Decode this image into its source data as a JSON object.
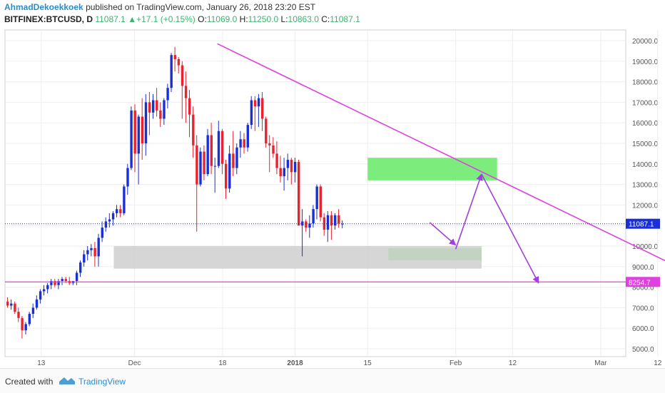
{
  "header": {
    "author": "AhmadDekoekkoek",
    "published": "published on TradingView.com, January 26, 2018 23:20 EST",
    "symbol": "BITFINEX:BTCUSD, D",
    "last": "11087.1",
    "change": "+17.1 (+0.15%)",
    "o_label": "O:",
    "o_val": "11069.0",
    "h_label": "H:",
    "h_val": "11250.0",
    "l_label": "L:",
    "l_val": "10863.0",
    "c_label": "C:",
    "c_val": "11087.1"
  },
  "footer": {
    "created_with": "Created with",
    "brand": "TradingView"
  },
  "colors": {
    "up": "#1a2fd6",
    "down": "#e8232f",
    "trend": "#e040e0",
    "zone": "#6eea6e",
    "gray_zone": "#cfcfcf",
    "arrow": "#a040e0"
  },
  "chart_data": {
    "type": "candlestick",
    "ylim": [
      4500,
      20500
    ],
    "y_ticks": [
      "20000.0",
      "19000.0",
      "18000.0",
      "17000.0",
      "16000.0",
      "15000.0",
      "14000.0",
      "13000.0",
      "12000.0",
      "11000.0",
      "10000.0",
      "9000.0",
      "8000.0",
      "7000.0",
      "6000.0",
      "5000.0"
    ],
    "x_ticks": [
      "13",
      "Dec",
      "18",
      "2018",
      "15",
      "Feb",
      "12",
      "Mar",
      "12"
    ],
    "last_price_label": "11087.1",
    "support_label": "8254.7",
    "support_level": 8254.7,
    "candles": [
      [
        7300,
        7500,
        7000,
        7100
      ],
      [
        7100,
        7400,
        6900,
        7200
      ],
      [
        7200,
        7300,
        6700,
        6800
      ],
      [
        6800,
        7000,
        6300,
        6500
      ],
      [
        6500,
        6600,
        5500,
        5900
      ],
      [
        5900,
        6300,
        5700,
        6200
      ],
      [
        6200,
        6800,
        6100,
        6700
      ],
      [
        6700,
        7200,
        6500,
        7000
      ],
      [
        7000,
        7600,
        6900,
        7400
      ],
      [
        7400,
        7900,
        7200,
        7800
      ],
      [
        7800,
        8100,
        7600,
        7900
      ],
      [
        7900,
        8200,
        7700,
        8100
      ],
      [
        8100,
        8400,
        7900,
        8300
      ],
      [
        8300,
        8400,
        8000,
        8100
      ],
      [
        8100,
        8400,
        7900,
        8300
      ],
      [
        8300,
        8500,
        8100,
        8400
      ],
      [
        8400,
        8500,
        8200,
        8300
      ],
      [
        8300,
        8500,
        8100,
        8200
      ],
      [
        8200,
        8300,
        8100,
        8300
      ],
      [
        8300,
        8800,
        8100,
        8700
      ],
      [
        8700,
        9300,
        8500,
        9200
      ],
      [
        9200,
        9800,
        9000,
        9600
      ],
      [
        9600,
        10000,
        9300,
        9800
      ],
      [
        9800,
        10100,
        9500,
        9900
      ],
      [
        9900,
        10200,
        9000,
        9500
      ],
      [
        9500,
        10600,
        9000,
        10400
      ],
      [
        10400,
        11200,
        10200,
        10900
      ],
      [
        10900,
        11400,
        10700,
        11200
      ],
      [
        11200,
        11600,
        10900,
        11300
      ],
      [
        11300,
        11700,
        11000,
        11600
      ],
      [
        11600,
        12000,
        11400,
        11800
      ],
      [
        11800,
        12000,
        11400,
        11600
      ],
      [
        11600,
        13000,
        11500,
        12900
      ],
      [
        12900,
        14000,
        12500,
        13800
      ],
      [
        13800,
        16800,
        13700,
        16600
      ],
      [
        16600,
        16900,
        13600,
        14500
      ],
      [
        14500,
        16400,
        13000,
        16300
      ],
      [
        16300,
        17200,
        14200,
        15000
      ],
      [
        15000,
        17400,
        14400,
        17000
      ],
      [
        17000,
        17500,
        15400,
        16500
      ],
      [
        16500,
        17400,
        16200,
        17100
      ],
      [
        17100,
        17700,
        16300,
        16600
      ],
      [
        16600,
        17000,
        15800,
        16200
      ],
      [
        16200,
        17200,
        15900,
        17100
      ],
      [
        17100,
        17900,
        16700,
        17700
      ],
      [
        17700,
        19400,
        17500,
        19300
      ],
      [
        19300,
        19700,
        18500,
        19100
      ],
      [
        19100,
        19200,
        18400,
        18800
      ],
      [
        18800,
        19000,
        16200,
        17800
      ],
      [
        17800,
        18500,
        16000,
        17200
      ],
      [
        17200,
        17600,
        15300,
        16400
      ],
      [
        16400,
        16800,
        14300,
        14900
      ],
      [
        14900,
        15400,
        10700,
        13000
      ],
      [
        13000,
        14800,
        12900,
        14600
      ],
      [
        14600,
        14900,
        13200,
        13500
      ],
      [
        13500,
        15700,
        13400,
        15400
      ],
      [
        15400,
        16000,
        13500,
        13900
      ],
      [
        13900,
        14300,
        12600,
        13900
      ],
      [
        13900,
        16100,
        13800,
        15600
      ],
      [
        15600,
        15700,
        13500,
        14000
      ],
      [
        14000,
        14200,
        12300,
        12800
      ],
      [
        12800,
        14900,
        12600,
        14500
      ],
      [
        14500,
        15600,
        13400,
        13800
      ],
      [
        13800,
        15000,
        13500,
        14800
      ],
      [
        14800,
        15600,
        14300,
        15200
      ],
      [
        15200,
        15500,
        14500,
        14800
      ],
      [
        14800,
        16000,
        14600,
        15900
      ],
      [
        15900,
        17300,
        15700,
        17100
      ],
      [
        17100,
        17300,
        15600,
        16800
      ],
      [
        16800,
        17400,
        15800,
        17200
      ],
      [
        17200,
        17500,
        15600,
        16200
      ],
      [
        16200,
        16300,
        14800,
        15000
      ],
      [
        15000,
        15400,
        13600,
        14900
      ],
      [
        14900,
        15300,
        14300,
        14500
      ],
      [
        14500,
        15100,
        13500,
        13800
      ],
      [
        13800,
        14400,
        13100,
        13400
      ],
      [
        13400,
        14300,
        12700,
        13800
      ],
      [
        13800,
        14500,
        13200,
        14200
      ],
      [
        14200,
        14300,
        13000,
        13600
      ],
      [
        13600,
        14300,
        13100,
        14100
      ],
      [
        14100,
        14200,
        11000,
        11000
      ],
      [
        11000,
        11800,
        9500,
        11200
      ],
      [
        11200,
        11300,
        10700,
        10900
      ],
      [
        10900,
        11500,
        10400,
        11100
      ],
      [
        11100,
        12000,
        10900,
        11800
      ],
      [
        11800,
        13000,
        11300,
        12900
      ],
      [
        12900,
        13000,
        11200,
        11400
      ],
      [
        11400,
        11600,
        10500,
        10800
      ],
      [
        10800,
        11700,
        10200,
        11500
      ],
      [
        11500,
        11700,
        10300,
        11000
      ],
      [
        11000,
        11600,
        10800,
        11500
      ],
      [
        11500,
        11800,
        10900,
        11100
      ],
      [
        11069,
        11250,
        10863,
        11087.1
      ]
    ],
    "trendline": {
      "from": [
        "2017-12-17",
        19850
      ],
      "to": [
        "2018-03-24",
        8000
      ]
    },
    "zones": [
      {
        "from": "2018-01-15",
        "to": "2018-02-09",
        "low": 13200,
        "high": 14300
      },
      {
        "from": "2018-01-19",
        "to": "2018-02-06",
        "low": 9300,
        "high": 9900
      },
      {
        "from": "2017-11-27",
        "to": "2018-02-06",
        "low": 8900,
        "high": 10000
      }
    ]
  }
}
